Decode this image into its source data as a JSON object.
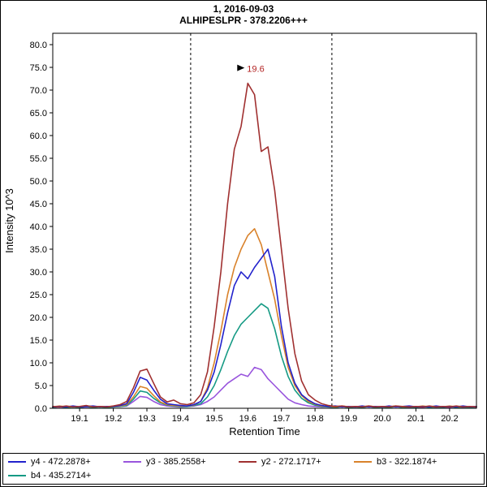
{
  "header": {
    "line1": "1, 2016-09-03",
    "line2": "ALHIPESLPR - 378.2206+++"
  },
  "chart_data": {
    "type": "line",
    "title": "1, 2016-09-03",
    "subtitle": "ALHIPESLPR - 378.2206+++",
    "xlabel": "Retention Time",
    "ylabel": "Intensity 10^3",
    "xlim": [
      19.02,
      20.28
    ],
    "ylim": [
      0,
      82.5
    ],
    "xticks": [
      19.1,
      19.2,
      19.3,
      19.4,
      19.5,
      19.6,
      19.7,
      19.8,
      19.9,
      20.0,
      20.1,
      20.2
    ],
    "yticks": [
      0,
      5,
      10,
      15,
      20,
      25,
      30,
      35,
      40,
      45,
      50,
      55,
      60,
      65,
      70,
      75,
      80
    ],
    "grid": false,
    "legend_position": "bottom",
    "boundaries": [
      19.43,
      19.85
    ],
    "annotation": {
      "x": 19.6,
      "y": 74.0,
      "label": "19.6",
      "color": "#b22222"
    },
    "x": [
      19.02,
      19.04,
      19.06,
      19.08,
      19.1,
      19.12,
      19.14,
      19.16,
      19.18,
      19.2,
      19.22,
      19.24,
      19.26,
      19.28,
      19.3,
      19.32,
      19.34,
      19.36,
      19.38,
      19.4,
      19.42,
      19.44,
      19.46,
      19.48,
      19.5,
      19.52,
      19.54,
      19.56,
      19.58,
      19.6,
      19.62,
      19.64,
      19.66,
      19.68,
      19.7,
      19.72,
      19.74,
      19.76,
      19.78,
      19.8,
      19.82,
      19.84,
      19.86,
      19.88,
      19.9,
      19.92,
      19.94,
      19.96,
      19.98,
      20.0,
      20.02,
      20.04,
      20.06,
      20.08,
      20.1,
      20.12,
      20.14,
      20.16,
      20.18,
      20.2,
      20.22,
      20.24,
      20.26,
      20.28
    ],
    "series": [
      {
        "id": "y4",
        "name": "y4 - 472.2878+",
        "color": "#2222cc",
        "z": 4,
        "values": [
          0.3,
          0.4,
          0.3,
          0.5,
          0.3,
          0.4,
          0.5,
          0.3,
          0.4,
          0.4,
          0.6,
          1.0,
          3.5,
          6.8,
          6.2,
          4.0,
          2.0,
          1.0,
          0.8,
          0.6,
          0.5,
          0.8,
          1.5,
          4.0,
          8.0,
          14.0,
          21.0,
          27.0,
          30.0,
          28.5,
          31.0,
          33.0,
          35.0,
          29.0,
          18.0,
          10.0,
          5.5,
          3.0,
          1.8,
          1.0,
          0.6,
          0.4,
          0.5,
          0.3,
          0.4,
          0.3,
          0.5,
          0.3,
          0.4,
          0.3,
          0.5,
          0.3,
          0.4,
          0.5,
          0.3,
          0.4,
          0.3,
          0.5,
          0.3,
          0.4,
          0.3,
          0.5,
          0.3,
          0.4
        ]
      },
      {
        "id": "y3",
        "name": "y3 - 385.2558+",
        "color": "#9955dd",
        "z": 1,
        "values": [
          0.2,
          0.3,
          0.2,
          0.4,
          0.2,
          0.3,
          0.2,
          0.4,
          0.3,
          0.3,
          0.4,
          0.5,
          1.5,
          2.6,
          2.4,
          1.5,
          0.8,
          0.5,
          0.4,
          0.3,
          0.4,
          0.5,
          0.8,
          1.5,
          2.5,
          4.0,
          5.5,
          6.5,
          7.5,
          7.0,
          9.0,
          8.5,
          6.5,
          5.0,
          3.5,
          2.0,
          1.2,
          0.8,
          0.5,
          0.4,
          0.3,
          0.3,
          0.2,
          0.4,
          0.2,
          0.3,
          0.2,
          0.4,
          0.2,
          0.3,
          0.2,
          0.4,
          0.3,
          0.2,
          0.3,
          0.2,
          0.4,
          0.2,
          0.3,
          0.2,
          0.4,
          0.2,
          0.3,
          0.2
        ]
      },
      {
        "id": "y2",
        "name": "y2 - 272.1717+",
        "color": "#a03030",
        "z": 5,
        "values": [
          0.4,
          0.3,
          0.5,
          0.3,
          0.4,
          0.6,
          0.3,
          0.4,
          0.3,
          0.5,
          0.8,
          1.5,
          4.5,
          8.2,
          8.6,
          5.5,
          2.5,
          1.4,
          1.8,
          1.0,
          0.8,
          1.2,
          3.0,
          8.0,
          18.0,
          30.0,
          45.0,
          57.0,
          62.0,
          71.5,
          69.0,
          56.5,
          57.5,
          48.0,
          35.0,
          22.0,
          12.0,
          6.0,
          3.0,
          1.8,
          1.0,
          0.6,
          0.4,
          0.5,
          0.3,
          0.4,
          0.3,
          0.5,
          0.3,
          0.4,
          0.3,
          0.5,
          0.4,
          0.3,
          0.4,
          0.3,
          0.5,
          0.3,
          0.4,
          0.3,
          0.5,
          0.3,
          0.4,
          0.3
        ]
      },
      {
        "id": "b3",
        "name": "b3 - 322.1874+",
        "color": "#d9822b",
        "z": 3,
        "values": [
          0.3,
          0.5,
          0.3,
          0.4,
          0.3,
          0.5,
          0.3,
          0.4,
          0.3,
          0.4,
          0.5,
          0.8,
          2.5,
          4.8,
          4.4,
          2.8,
          1.4,
          0.8,
          0.6,
          0.5,
          0.5,
          0.7,
          1.5,
          4.5,
          10.0,
          17.0,
          25.0,
          31.0,
          35.0,
          38.0,
          39.5,
          36.0,
          30.0,
          24.0,
          16.0,
          9.0,
          5.0,
          2.8,
          1.5,
          0.9,
          0.5,
          0.4,
          0.3,
          0.5,
          0.3,
          0.4,
          0.3,
          0.5,
          0.3,
          0.4,
          0.3,
          0.5,
          0.3,
          0.4,
          0.3,
          0.5,
          0.3,
          0.4,
          0.3,
          0.5,
          0.3,
          0.4,
          0.3,
          0.4
        ]
      },
      {
        "id": "b4",
        "name": "b4 - 435.2714+",
        "color": "#159a84",
        "z": 2,
        "values": [
          0.2,
          0.4,
          0.2,
          0.3,
          0.2,
          0.4,
          0.2,
          0.3,
          0.2,
          0.3,
          0.4,
          0.6,
          2.0,
          3.8,
          3.5,
          2.2,
          1.2,
          0.7,
          0.5,
          0.4,
          0.4,
          0.6,
          1.0,
          2.5,
          5.0,
          8.5,
          12.5,
          16.0,
          18.5,
          20.0,
          21.5,
          23.0,
          22.0,
          17.5,
          11.5,
          7.0,
          4.0,
          2.2,
          1.2,
          0.7,
          0.4,
          0.3,
          0.2,
          0.4,
          0.2,
          0.3,
          0.2,
          0.4,
          0.2,
          0.3,
          0.2,
          0.4,
          0.2,
          0.3,
          0.2,
          0.4,
          0.2,
          0.3,
          0.2,
          0.4,
          0.2,
          0.3,
          0.2,
          0.3
        ]
      }
    ]
  }
}
